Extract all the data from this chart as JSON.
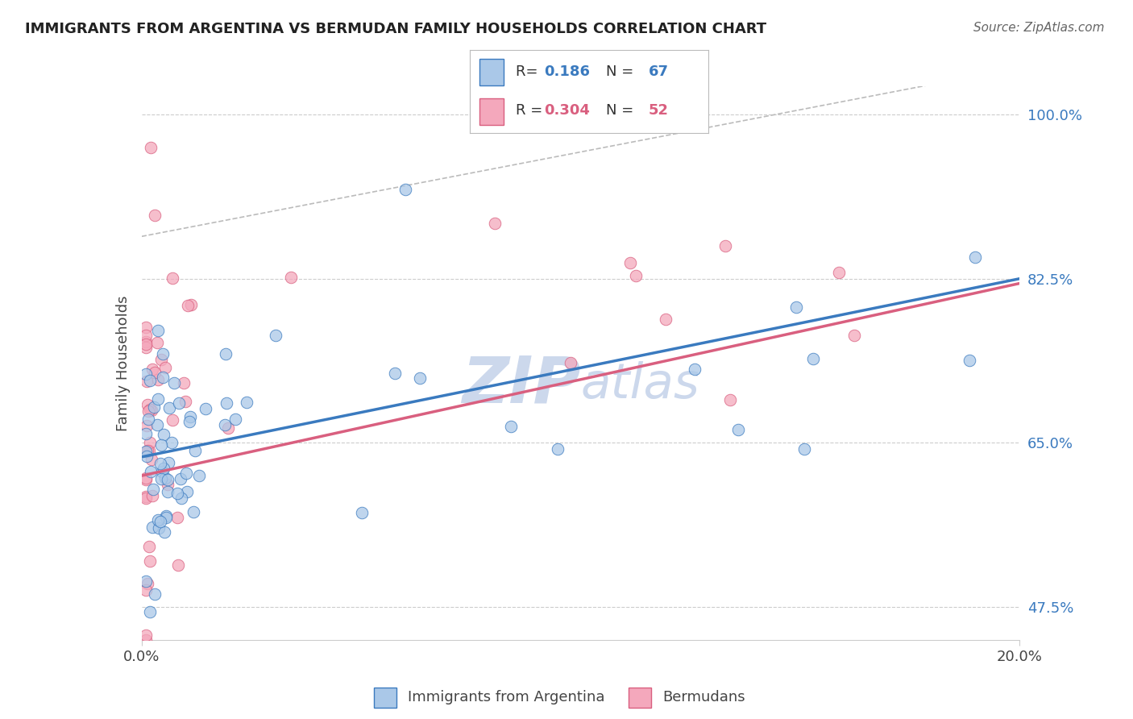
{
  "title": "IMMIGRANTS FROM ARGENTINA VS BERMUDAN FAMILY HOUSEHOLDS CORRELATION CHART",
  "source_text": "Source: ZipAtlas.com",
  "ylabel": "Family Households",
  "xlim": [
    0.0,
    0.2
  ],
  "ylim": [
    0.44,
    1.03
  ],
  "xticks": [
    0.0,
    0.2
  ],
  "xticklabels": [
    "0.0%",
    "20.0%"
  ],
  "ytick_values": [
    0.475,
    0.65,
    0.825,
    1.0
  ],
  "ytick_labels": [
    "47.5%",
    "65.0%",
    "82.5%",
    "100.0%"
  ],
  "argentina_color": "#aac8e8",
  "bermuda_color": "#f4a8bc",
  "argentina_line_color": "#3a7abf",
  "bermuda_line_color": "#d95f7f",
  "argentina_R": 0.186,
  "argentina_N": 67,
  "bermuda_R": 0.304,
  "bermuda_N": 52,
  "arg_trend": [
    0.635,
    0.825
  ],
  "berm_trend": [
    0.615,
    0.82
  ],
  "background_color": "#ffffff",
  "grid_color": "#cccccc",
  "watermark_color": "#ccd8ec"
}
